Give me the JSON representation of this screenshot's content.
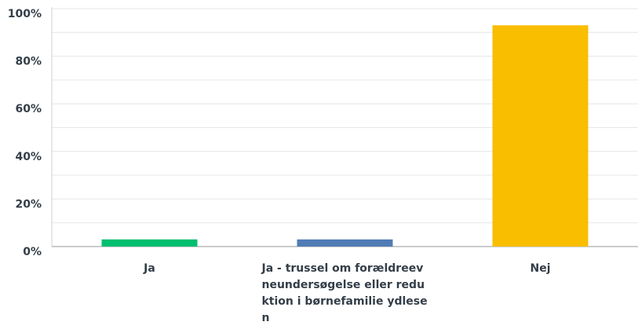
{
  "chart_data": {
    "type": "bar",
    "categories": [
      "Ja",
      "Ja - trussel om forældreevneundersøgelse eller reduktion i børnefamilie ydlesen",
      "Nej"
    ],
    "values": [
      3,
      3,
      93
    ],
    "colors": [
      "#00bf6f",
      "#507cb6",
      "#f9be00"
    ],
    "ylim": [
      0,
      100
    ],
    "yticks": [
      {
        "value": 0,
        "label": "0%"
      },
      {
        "value": 20,
        "label": "20%"
      },
      {
        "value": 40,
        "label": "40%"
      },
      {
        "value": 60,
        "label": "60%"
      },
      {
        "value": 80,
        "label": "80%"
      },
      {
        "value": 100,
        "label": "100%"
      }
    ],
    "minor_yticks": [
      10,
      30,
      50,
      70,
      90
    ],
    "grid": true
  }
}
